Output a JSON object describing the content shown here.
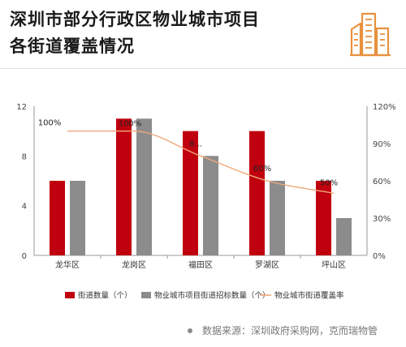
{
  "header": {
    "title_line1": "深圳市部分行政区物业城市项目",
    "title_line2": "各街道覆盖情况"
  },
  "icons": {
    "building": "building-icon",
    "source_dot": "bullet-dot"
  },
  "colors": {
    "bar1": "#c0000e",
    "bar2": "#8c8c8c",
    "line": "#f0a87a",
    "title": "#1a1a1a"
  },
  "chart_data": {
    "type": "bar",
    "categories": [
      "龙华区",
      "龙岗区",
      "福田区",
      "罗湖区",
      "坪山区"
    ],
    "series": [
      {
        "name": "街道数量（个）",
        "type": "bar",
        "axis": "left",
        "values": [
          6,
          11,
          10,
          10,
          6
        ]
      },
      {
        "name": "物业城市项目街道招标数量（个）",
        "type": "bar",
        "axis": "left",
        "values": [
          6,
          11,
          8,
          6,
          3
        ]
      },
      {
        "name": "物业城市街道覆盖率",
        "type": "line",
        "axis": "right",
        "values": [
          100,
          100,
          80,
          60,
          50
        ]
      }
    ],
    "data_labels": [
      "100%",
      "100%",
      "8...",
      "60%",
      "50%"
    ],
    "y_left": {
      "ylim": [
        0,
        12
      ],
      "ticks": [
        "0",
        "4",
        "8",
        "12"
      ]
    },
    "y_right": {
      "ylim": [
        0,
        120
      ],
      "ticks": [
        "0%",
        "30%",
        "60%",
        "90%",
        "120%"
      ]
    },
    "legend_position": "bottom",
    "grid": false
  },
  "footer": {
    "source": "数据来源：深圳政府采购网，克而瑞物管"
  }
}
